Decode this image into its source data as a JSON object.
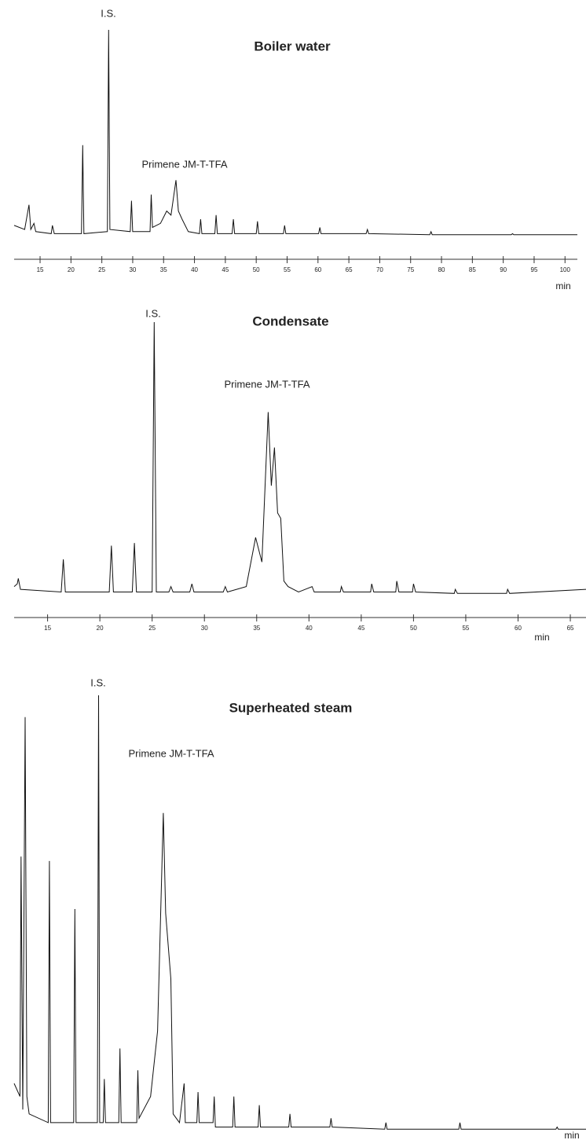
{
  "chart_data": [
    {
      "type": "line",
      "title": "Boiler water",
      "annotations": [
        "I.S.",
        "Primene JM-T-TFA"
      ],
      "x_label": "min",
      "color": "#111111",
      "x": [
        10.8,
        12.5,
        13.2,
        13.5,
        14,
        14.3,
        16.8,
        17,
        17.3,
        21.7,
        21.9,
        22.1,
        25.9,
        26.1,
        26.3,
        29.6,
        29.8,
        30,
        32.8,
        33,
        33.2,
        34.5,
        35.5,
        36.2,
        37,
        37.4,
        38,
        39,
        40.8,
        41,
        41.2,
        43.3,
        43.5,
        43.7,
        46.1,
        46.3,
        46.5,
        50,
        50.2,
        50.4,
        54.4,
        54.6,
        54.8,
        60.1,
        60.3,
        60.5,
        67.8,
        68,
        68.2,
        78.1,
        78.3,
        78.5,
        91.3,
        91.5,
        91.7,
        102
      ],
      "values": [
        5,
        3,
        15,
        3,
        6,
        2,
        1,
        5,
        1,
        1,
        44,
        1,
        2,
        100,
        3,
        2,
        17,
        2,
        2,
        20,
        4,
        6,
        12,
        10,
        27,
        12,
        8,
        2,
        1,
        8,
        1,
        1,
        10,
        1,
        1,
        8,
        1,
        1,
        7,
        1,
        1,
        5,
        1,
        1,
        4,
        1,
        1,
        3,
        1,
        0.5,
        2,
        0.5,
        0.5,
        1,
        0.5,
        0.5
      ],
      "xlim": [
        10.8,
        102
      ],
      "xticks": [
        15,
        20,
        25,
        30,
        35,
        40,
        45,
        50,
        55,
        60,
        65,
        70,
        75,
        80,
        85,
        90,
        95,
        100
      ]
    },
    {
      "type": "line",
      "title": "Condensate",
      "annotations": [
        "I.S.",
        "Primene JM-T-TFA"
      ],
      "x_label": "min",
      "color": "#111111",
      "x": [
        11.8,
        12.1,
        12.2,
        12.4,
        16.3,
        16.5,
        16.7,
        20.9,
        21.1,
        21.3,
        23.1,
        23.3,
        23.5,
        25,
        25.2,
        25.4,
        26.6,
        26.8,
        27,
        28.6,
        28.8,
        29,
        31.8,
        32,
        32.2,
        34,
        34.9,
        35.5,
        36.1,
        36.4,
        36.7,
        37,
        37.3,
        37.6,
        38,
        39,
        40.3,
        40.5,
        43,
        43.1,
        43.3,
        45.9,
        46,
        46.2,
        48.3,
        48.4,
        48.6,
        49.9,
        50,
        50.2,
        53.9,
        54,
        54.2,
        58.9,
        59,
        59.2,
        66.5
      ],
      "values": [
        3,
        4,
        6,
        2,
        1,
        13,
        1,
        1,
        18,
        1,
        1,
        19,
        1,
        1,
        100,
        1,
        1,
        3,
        1,
        1,
        4,
        1,
        1,
        3,
        1,
        3,
        21,
        12,
        67,
        40,
        54,
        30,
        28,
        5,
        3,
        1,
        3,
        1,
        1,
        3,
        1,
        1,
        4,
        1,
        1,
        5,
        1,
        1,
        4,
        1,
        0.5,
        2,
        0.5,
        0.5,
        2,
        0.5,
        2
      ],
      "xlim": [
        11.8,
        66.5
      ],
      "xticks": [
        15,
        20,
        25,
        30,
        35,
        40,
        45,
        50,
        55,
        60,
        65
      ]
    },
    {
      "type": "line",
      "title": "Superheated steam",
      "annotations": [
        "I.S.",
        "Primene JM-T-TFA"
      ],
      "x_label": "min",
      "color": "#111111",
      "x": [
        12.4,
        13.4,
        13.6,
        13.9,
        14.3,
        14.6,
        15,
        18.3,
        18.5,
        18.7,
        22.7,
        22.9,
        23.1,
        26.8,
        27,
        27.2,
        27.8,
        28,
        28.2,
        30.5,
        30.7,
        30.9,
        33.6,
        33.8,
        34,
        36,
        37.2,
        38.2,
        38.6,
        39.5,
        39.9,
        41,
        41.8,
        42,
        44,
        44.2,
        44.4,
        46.8,
        47,
        47.2,
        50.2,
        50.4,
        50.6,
        54.6,
        54.8,
        55,
        59.9,
        60.1,
        60.3,
        67,
        67.2,
        67.4,
        76.5,
        76.7,
        76.9,
        89.3,
        89.5,
        89.7,
        106.1,
        106.3,
        106.5,
        111.3
      ],
      "values": [
        11,
        8,
        63,
        5,
        95,
        8,
        4,
        2,
        62,
        2,
        2,
        51,
        2,
        2,
        100,
        2,
        2,
        12,
        2,
        2,
        19,
        2,
        2,
        14,
        3,
        8,
        23,
        73,
        50,
        35,
        4,
        2,
        11,
        2,
        2,
        9,
        2,
        2,
        8,
        1,
        1,
        8,
        1,
        1,
        6,
        1,
        1,
        4,
        1,
        1,
        3,
        1,
        0.5,
        2,
        0.5,
        0.5,
        2,
        0.5,
        0.5,
        1,
        0.5,
        0.5
      ],
      "xlim": [
        12.4,
        111.3
      ],
      "xticks": [
        15,
        20,
        25,
        30,
        35,
        40,
        45,
        50,
        55,
        60,
        65,
        70,
        75,
        80,
        85,
        90,
        95,
        100,
        105,
        110
      ]
    }
  ]
}
